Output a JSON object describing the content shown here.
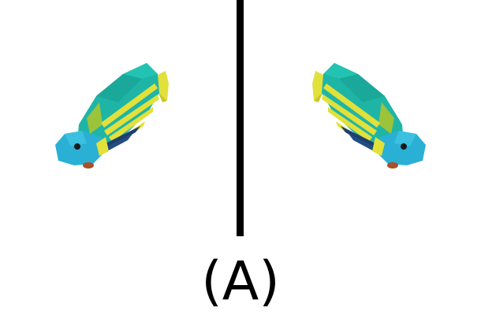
{
  "figure": {
    "caption": "(A)",
    "left_panel": {
      "icon": "fish-icon",
      "facing": "left"
    },
    "right_panel": {
      "icon": "fish-icon",
      "facing": "right",
      "mirrored": true
    },
    "colors": {
      "body_teal": "#1fb5a6",
      "body_dark": "#17998d",
      "head_blue": "#2ab0d4",
      "stripe_yellow": "#e2e03a",
      "patch_green": "#9cc43a",
      "fin_dark": "#1c3f6e",
      "mouth_brown": "#a5512a",
      "divider": "#000000"
    }
  }
}
